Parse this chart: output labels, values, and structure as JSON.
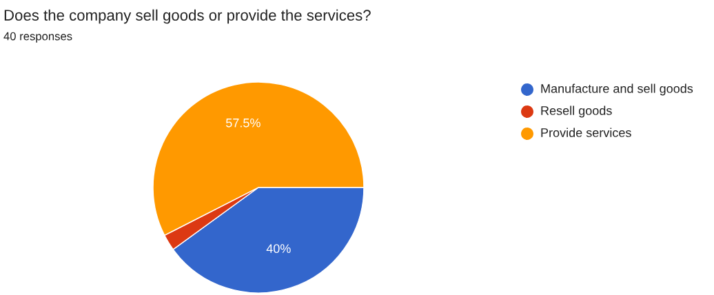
{
  "chart_data": {
    "type": "pie",
    "title": "Does the company sell goods or provide the services?",
    "subtitle": "40 responses",
    "categories": [
      "Manufacture and sell goods",
      "Resell goods",
      "Provide services"
    ],
    "values": [
      40,
      2.5,
      57.5
    ],
    "colors": [
      "#3366cc",
      "#dc3912",
      "#ff9900"
    ],
    "value_labels": [
      "40%",
      null,
      "57.5%"
    ],
    "legend": "top right"
  }
}
